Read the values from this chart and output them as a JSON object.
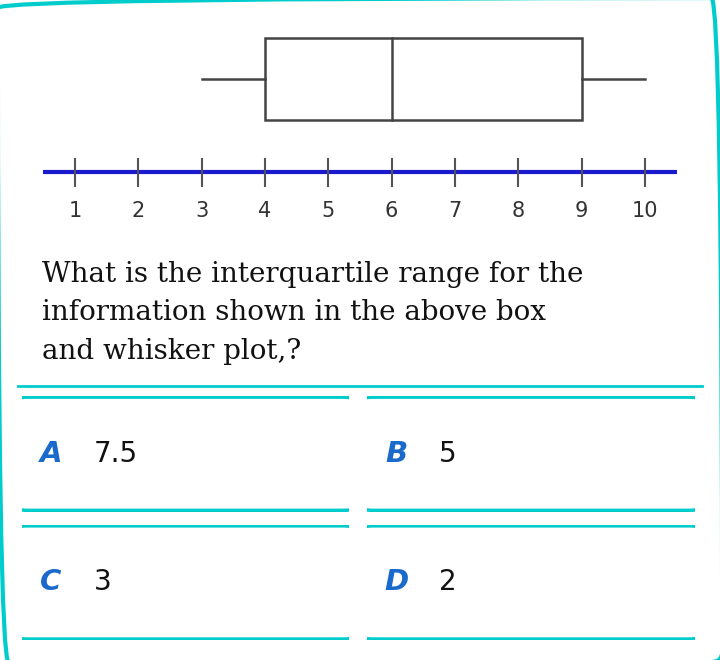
{
  "whisker_min": 3,
  "q1": 4,
  "median": 6,
  "q3": 9,
  "whisker_max": 10,
  "axis_min": 1,
  "axis_max": 10,
  "axis_ticks": [
    1,
    2,
    3,
    4,
    5,
    6,
    7,
    8,
    9,
    10
  ],
  "box_color": "white",
  "box_edge_color": "#444444",
  "whisker_color": "#444444",
  "axis_line_color": "#1a1acc",
  "tick_color": "#555555",
  "background_color": "white",
  "border_color": "#00cccc",
  "question_text": "What is the interquartile range for the\ninformation shown in the above box\nand whisker plot,?",
  "options": [
    {
      "label": "A",
      "value": "7.5"
    },
    {
      "label": "B",
      "value": "5"
    },
    {
      "label": "C",
      "value": "3"
    },
    {
      "label": "D",
      "value": "2"
    }
  ],
  "option_border_color": "#00cccc",
  "option_label_color": "#1a6acc",
  "option_value_color": "#111111",
  "option_bg_color": "white",
  "question_fontsize": 20,
  "option_fontsize": 20,
  "tick_fontsize": 15,
  "figwidth": 7.2,
  "figheight": 6.6,
  "dpi": 100
}
